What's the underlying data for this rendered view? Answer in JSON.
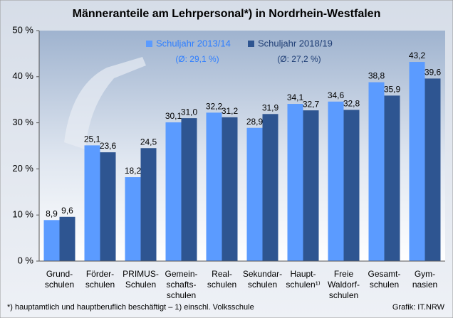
{
  "chart_data": {
    "type": "bar",
    "title": "Männeranteile am Lehrpersonal*) in Nordrhein-Westfalen",
    "categories": [
      [
        "Grund-",
        "schulen"
      ],
      [
        "Förder-",
        "schulen"
      ],
      [
        "PRIMUS-",
        "Schulen"
      ],
      [
        "Gemein-",
        "schafts-",
        "schulen"
      ],
      [
        "Real-",
        "schulen"
      ],
      [
        "Sekundar-",
        "schulen"
      ],
      [
        "Haupt-",
        "schulen¹⁾"
      ],
      [
        "Freie",
        "Waldorf-",
        "schulen"
      ],
      [
        "Gesamt-",
        "schulen"
      ],
      [
        "Gym-",
        "nasien"
      ]
    ],
    "series": [
      {
        "name": "Schuljahr 2013/14",
        "legend_note": "(Ø: 29,1 %)",
        "color": "#5b9bff",
        "values": [
          8.9,
          25.1,
          18.2,
          30.1,
          32.2,
          28.9,
          34.1,
          34.6,
          38.8,
          43.2
        ],
        "value_labels": [
          "8,9",
          "25,1",
          "18,2",
          "30,1",
          "32,2",
          "28,9",
          "34,1",
          "34,6",
          "38,8",
          "43,2"
        ]
      },
      {
        "name": "Schuljahr 2018/19",
        "legend_note": "(Ø: 27,2 %)",
        "color": "#2e5591",
        "values": [
          9.6,
          23.6,
          24.5,
          31.0,
          31.2,
          31.9,
          32.7,
          32.8,
          35.9,
          39.6
        ],
        "value_labels": [
          "9,6",
          "23,6",
          "24,5",
          "31,0",
          "31,2",
          "31,9",
          "32,7",
          "32,8",
          "35,9",
          "39,6"
        ]
      }
    ],
    "ylim": [
      0,
      50
    ],
    "yticks": [
      {
        "value": 0,
        "label": "0 %"
      },
      {
        "value": 10,
        "label": "10 %"
      },
      {
        "value": 20,
        "label": "20 %"
      },
      {
        "value": 30,
        "label": "30 %"
      },
      {
        "value": 40,
        "label": "40 %"
      },
      {
        "value": 50,
        "label": "50 %"
      }
    ],
    "footnote": "*) hauptamtlich und hauptberuflich beschäftigt – 1) einschl. Volksschule",
    "source": "Grafik: IT.NRW"
  }
}
